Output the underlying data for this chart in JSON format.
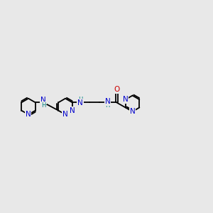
{
  "bg_color": "#e8e8e8",
  "bond_color": "#000000",
  "N_color": "#0000cc",
  "O_color": "#cc0000",
  "NH_color": "#008080",
  "line_width": 1.3,
  "font_size_atom": 7.5,
  "font_size_H": 6.0,
  "fig_width": 3.0,
  "fig_height": 3.0,
  "dpi": 100,
  "r": 0.38,
  "xlim": [
    0,
    10
  ],
  "ylim": [
    2.5,
    7.5
  ]
}
